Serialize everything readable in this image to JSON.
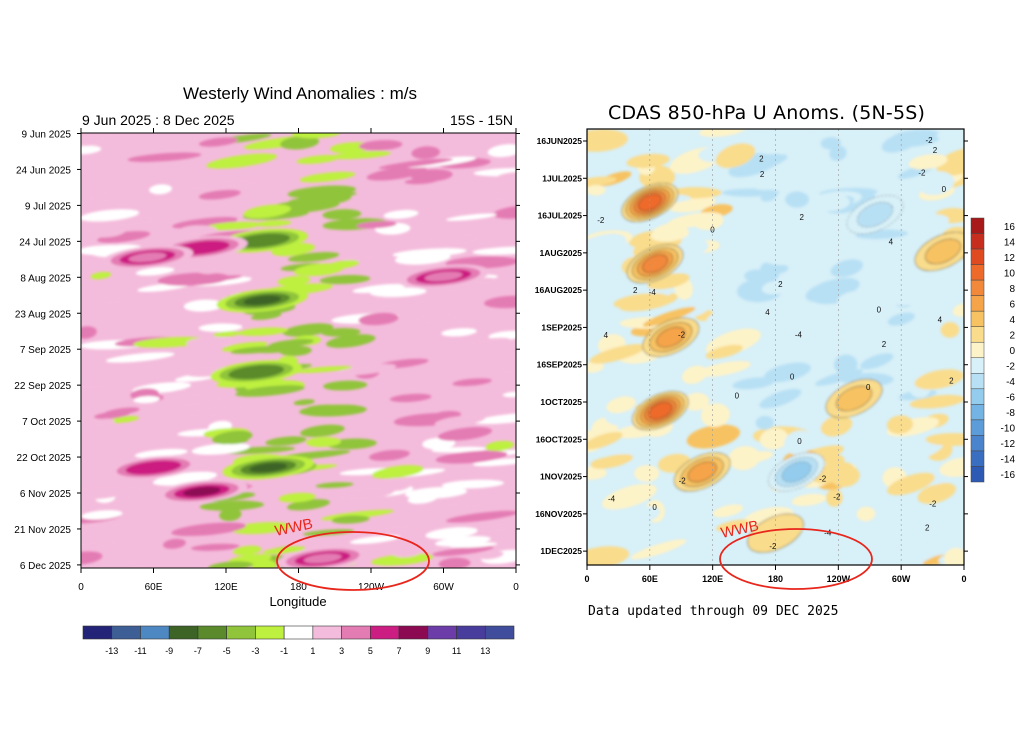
{
  "chart_data": [
    {
      "type": "heatmap",
      "title": "Westerly Wind Anomalies : m/s",
      "subtitle_left": "9 Jun 2025 : 8 Dec 2025",
      "subtitle_right": "15S - 15N",
      "xlabel": "Longitude",
      "xticks": [
        "0",
        "60E",
        "120E",
        "180",
        "120W",
        "60W",
        "0"
      ],
      "yticks": [
        "9 Jun 2025",
        "24 Jun 2025",
        "9 Jul 2025",
        "24 Jul 2025",
        "8 Aug 2025",
        "23 Aug 2025",
        "7 Sep 2025",
        "22 Sep 2025",
        "7 Oct 2025",
        "22 Oct 2025",
        "6 Nov 2025",
        "21 Nov 2025",
        "6 Dec 2025"
      ],
      "colorbar": {
        "labels": [
          "-13",
          "-11",
          "-9",
          "-7",
          "-5",
          "-3",
          "-1",
          "1",
          "3",
          "5",
          "7",
          "9",
          "11",
          "13"
        ],
        "colors": [
          "#232478",
          "#3e5e96",
          "#4e88c2",
          "#3e6326",
          "#5a8a2c",
          "#90c43a",
          "#bef040",
          "#ffffff",
          "#f4bcdc",
          "#e47cb4",
          "#cc1e82",
          "#8c0a52",
          "#6c3ca8",
          "#483c9c",
          "#404c9c"
        ]
      },
      "annotation": "WWB",
      "x_range": [
        0,
        360
      ],
      "features": [
        {
          "lon": 150,
          "day": 70,
          "value": -8
        },
        {
          "lon": 150,
          "day": 45,
          "value": -6
        },
        {
          "lon": 145,
          "day": 100,
          "value": -7
        },
        {
          "lon": 155,
          "day": 140,
          "value": -8
        },
        {
          "lon": 100,
          "day": 150,
          "value": 7
        },
        {
          "lon": 60,
          "day": 140,
          "value": 5
        },
        {
          "lon": 100,
          "day": 48,
          "value": 5
        },
        {
          "lon": 55,
          "day": 52,
          "value": 4
        },
        {
          "lon": 300,
          "day": 60,
          "value": 3
        },
        {
          "lon": 200,
          "day": 178,
          "value": 3
        }
      ]
    },
    {
      "type": "heatmap",
      "title": "CDAS 850-hPa U Anoms. (5N-5S)",
      "footnote": "Data updated through 09 DEC 2025",
      "xticks": [
        "0",
        "60E",
        "120E",
        "180",
        "120W",
        "60W",
        "0"
      ],
      "yticks": [
        "16JUN2025",
        "1JUL2025",
        "16JUL2025",
        "1AUG2025",
        "16AUG2025",
        "1SEP2025",
        "16SEP2025",
        "1OCT2025",
        "16OCT2025",
        "1NOV2025",
        "16NOV2025",
        "1DEC2025"
      ],
      "colorbar": {
        "labels": [
          "16",
          "14",
          "12",
          "10",
          "8",
          "6",
          "4",
          "2",
          "0",
          "-2",
          "-4",
          "-6",
          "-8",
          "-10",
          "-12",
          "-14",
          "-16"
        ],
        "colors": [
          "#a81a1a",
          "#c82e1e",
          "#e04a20",
          "#ee6a2a",
          "#f2883a",
          "#f5a44a",
          "#f7c262",
          "#f9dc8c",
          "#fdf3c8",
          "#d8f0f8",
          "#b8e0f4",
          "#94cced",
          "#74b4e4",
          "#5c9cd8",
          "#4a84cc",
          "#3a6ec0",
          "#2c5ab4"
        ]
      },
      "annotation": "WWB",
      "x_range": [
        0,
        360
      ],
      "features": [
        {
          "lon": 60,
          "day": 30,
          "value": 10
        },
        {
          "lon": 65,
          "day": 55,
          "value": 8
        },
        {
          "lon": 80,
          "day": 85,
          "value": 6
        },
        {
          "lon": 70,
          "day": 115,
          "value": 10
        },
        {
          "lon": 110,
          "day": 140,
          "value": 6
        },
        {
          "lon": 180,
          "day": 165,
          "value": 2
        },
        {
          "lon": 275,
          "day": 35,
          "value": -4
        },
        {
          "lon": 200,
          "day": 140,
          "value": -6
        },
        {
          "lon": 340,
          "day": 50,
          "value": 4
        },
        {
          "lon": 255,
          "day": 110,
          "value": 4
        }
      ]
    }
  ]
}
